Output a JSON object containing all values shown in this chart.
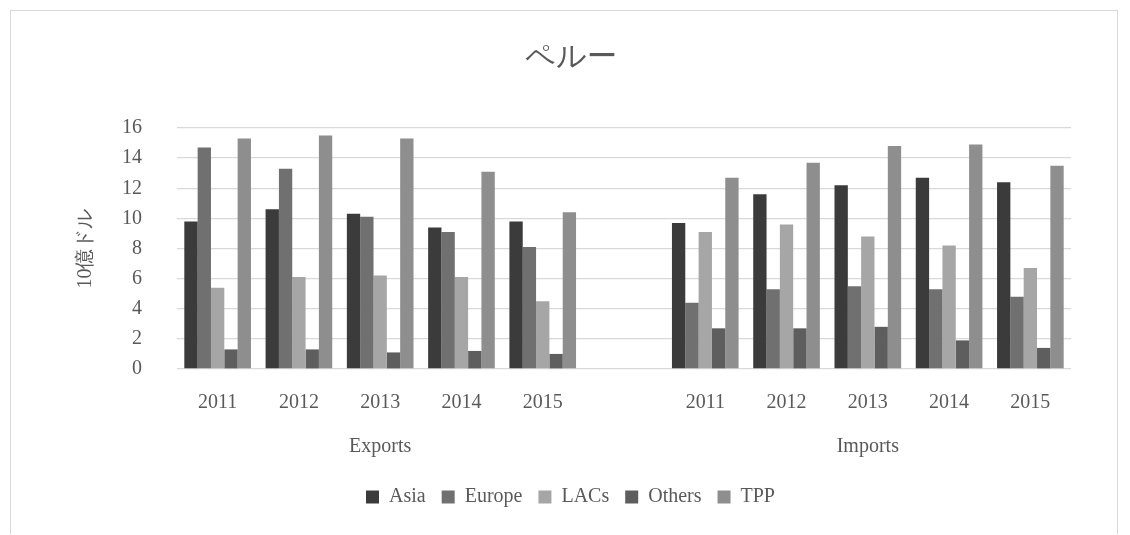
{
  "chart_data": {
    "type": "bar",
    "title": "ペルー",
    "ylabel": "10億ドル",
    "categories": [
      "2011",
      "2012",
      "2013",
      "2014",
      "2015",
      null,
      "2011",
      "2012",
      "2013",
      "2014",
      "2015"
    ],
    "series": [
      {
        "name": "Asia",
        "color": "#3b3b3b",
        "values": [
          9.8,
          10.6,
          10.3,
          9.4,
          9.8,
          null,
          9.7,
          11.6,
          12.2,
          12.7,
          12.4
        ]
      },
      {
        "name": "Europe",
        "color": "#707070",
        "values": [
          14.7,
          13.3,
          10.1,
          9.1,
          8.1,
          null,
          4.4,
          5.3,
          5.5,
          5.3,
          4.8
        ]
      },
      {
        "name": "LACs",
        "color": "#a6a6a6",
        "values": [
          5.4,
          6.1,
          6.2,
          6.1,
          4.5,
          null,
          9.1,
          9.6,
          8.8,
          8.2,
          6.7
        ]
      },
      {
        "name": "Others",
        "color": "#5e5e5e",
        "values": [
          1.3,
          1.3,
          1.1,
          1.2,
          1.0,
          null,
          2.7,
          2.7,
          2.8,
          1.9,
          1.4
        ]
      },
      {
        "name": "TPP",
        "color": "#8e8e8e",
        "values": [
          15.3,
          15.5,
          15.3,
          13.1,
          10.4,
          null,
          12.7,
          13.7,
          14.8,
          14.9,
          13.5
        ]
      }
    ],
    "ylim": [
      0,
      16
    ],
    "yticks": [
      0,
      2,
      4,
      6,
      8,
      10,
      12,
      14,
      16
    ],
    "grid": "y",
    "legend": "bottom",
    "annotations": [
      "Exports",
      "Imports"
    ]
  }
}
